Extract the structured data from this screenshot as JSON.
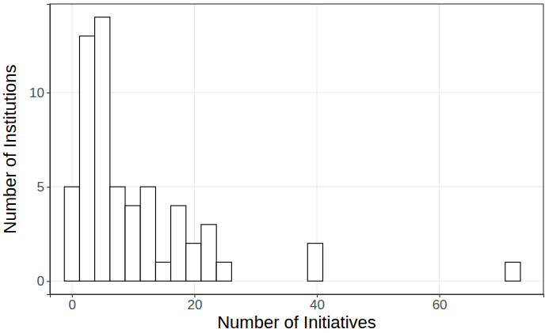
{
  "chart_data": {
    "type": "histogram",
    "x_label": "Number of Initiatives",
    "y_label": "Number of Institutions",
    "bins": [
      -1.24,
      1.24,
      3.72,
      6.21,
      8.69,
      11.17,
      13.66,
      16.14,
      18.62,
      21.1,
      23.59,
      26.07,
      28.55,
      31.03,
      33.52,
      36.0,
      38.48,
      40.97,
      43.45,
      45.93,
      48.41,
      50.9,
      53.38,
      55.86,
      58.34,
      60.83,
      63.31,
      65.79,
      68.28,
      70.76,
      73.24
    ],
    "values": [
      5,
      13,
      14,
      5,
      4,
      5,
      1,
      4,
      2,
      3,
      1,
      0,
      0,
      0,
      0,
      0,
      2,
      0,
      0,
      0,
      0,
      0,
      0,
      0,
      0,
      0,
      0,
      0,
      0,
      1
    ],
    "color": "#ffffff",
    "xlim": [
      -3.6,
      77
    ],
    "xticks": [
      0,
      20,
      40,
      60
    ],
    "ylim": [
      -0.7,
      14.7
    ],
    "yticks": [
      0,
      5,
      10
    ],
    "grid": true
  }
}
